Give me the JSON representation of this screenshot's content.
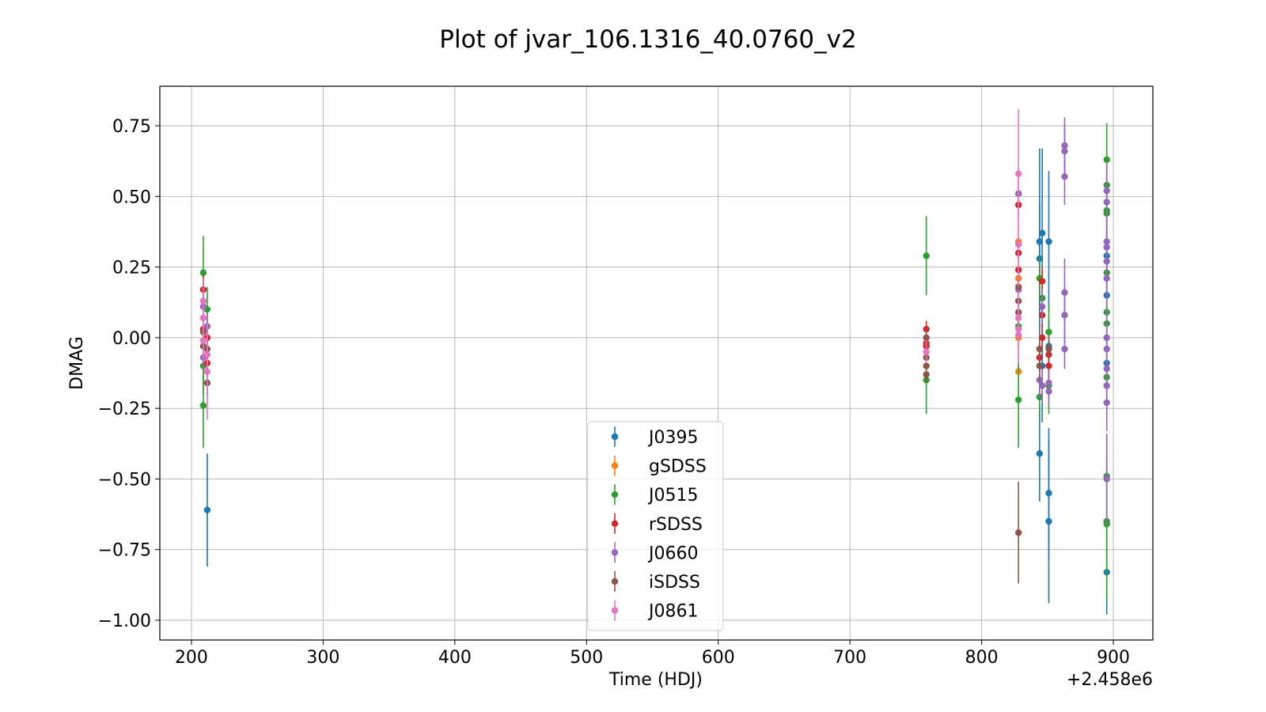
{
  "chart_data": {
    "type": "scatter",
    "title": "Plot of jvar_106.1316_40.0760_v2",
    "xlabel": "Time (HDJ)",
    "ylabel": "DMAG",
    "x_offset_label": "+2.458e6",
    "x_unit_note": "x values are shown offset from 2458000",
    "xlim": [
      176,
      930
    ],
    "ylim": [
      -1.07,
      0.89
    ],
    "xticks": [
      200,
      300,
      400,
      500,
      600,
      700,
      800,
      900
    ],
    "xtick_labels": [
      "200",
      "300",
      "400",
      "500",
      "600",
      "700",
      "800",
      "900"
    ],
    "yticks": [
      0.75,
      0.5,
      0.25,
      0.0,
      -0.25,
      -0.5,
      -0.75,
      -1.0
    ],
    "ytick_labels": [
      "0.75",
      "0.50",
      "0.25",
      "0.00",
      "−0.25",
      "−0.50",
      "−0.75",
      "−1.00"
    ],
    "grid": true,
    "legend_position": "bottom-center",
    "series": [
      {
        "name": "J0395",
        "color": "#1f77b4",
        "points": [
          {
            "x": 212,
            "y": -0.61,
            "err": 0.2
          },
          {
            "x": 844,
            "y": 0.34,
            "err": 0.33
          },
          {
            "x": 844,
            "y": 0.28,
            "err": 0.2
          },
          {
            "x": 844,
            "y": -0.41,
            "err": 0.17
          },
          {
            "x": 846,
            "y": 0.37,
            "err": 0.3
          },
          {
            "x": 846,
            "y": -0.1,
            "err": 0.2
          },
          {
            "x": 851,
            "y": 0.34,
            "err": 0.25
          },
          {
            "x": 851,
            "y": -0.55,
            "err": 0.23
          },
          {
            "x": 851,
            "y": -0.65,
            "err": 0.29
          },
          {
            "x": 851,
            "y": -0.03,
            "err": 0.1
          },
          {
            "x": 895,
            "y": 0.29,
            "err": 0.1
          },
          {
            "x": 895,
            "y": 0.15,
            "err": 0.08
          },
          {
            "x": 895,
            "y": -0.09,
            "err": 0.08
          },
          {
            "x": 895,
            "y": -0.83,
            "err": 0.15
          }
        ]
      },
      {
        "name": "gSDSS",
        "color": "#ff7f0e",
        "points": [
          {
            "x": 828,
            "y": 0.21,
            "err": 0.06
          },
          {
            "x": 828,
            "y": 0.34,
            "err": 0.05
          },
          {
            "x": 828,
            "y": -0.12,
            "err": 0.05
          },
          {
            "x": 828,
            "y": 0.51,
            "err": 0.06
          },
          {
            "x": 828,
            "y": 0.0,
            "err": 0.05
          }
        ]
      },
      {
        "name": "J0515",
        "color": "#2ca02c",
        "points": [
          {
            "x": 209,
            "y": 0.23,
            "err": 0.13
          },
          {
            "x": 209,
            "y": -0.1,
            "err": 0.1
          },
          {
            "x": 209,
            "y": -0.24,
            "err": 0.15
          },
          {
            "x": 212,
            "y": 0.1,
            "err": 0.08
          },
          {
            "x": 758,
            "y": 0.29,
            "err": 0.14
          },
          {
            "x": 758,
            "y": -0.15,
            "err": 0.12
          },
          {
            "x": 828,
            "y": -0.22,
            "err": 0.17
          },
          {
            "x": 828,
            "y": 0.04,
            "err": 0.08
          },
          {
            "x": 844,
            "y": 0.21,
            "err": 0.08
          },
          {
            "x": 844,
            "y": -0.21,
            "err": 0.08
          },
          {
            "x": 846,
            "y": 0.14,
            "err": 0.1
          },
          {
            "x": 851,
            "y": 0.02,
            "err": 0.1
          },
          {
            "x": 851,
            "y": -0.17,
            "err": 0.1
          },
          {
            "x": 895,
            "y": 0.63,
            "err": 0.13
          },
          {
            "x": 895,
            "y": 0.54,
            "err": 0.1
          },
          {
            "x": 895,
            "y": 0.44,
            "err": 0.1
          },
          {
            "x": 895,
            "y": 0.45,
            "err": 0.1
          },
          {
            "x": 895,
            "y": 0.23,
            "err": 0.08
          },
          {
            "x": 895,
            "y": 0.09,
            "err": 0.08
          },
          {
            "x": 895,
            "y": 0.05,
            "err": 0.08
          },
          {
            "x": 895,
            "y": -0.14,
            "err": 0.08
          },
          {
            "x": 895,
            "y": -0.49,
            "err": 0.15
          },
          {
            "x": 895,
            "y": -0.65,
            "err": 0.2
          },
          {
            "x": 895,
            "y": -0.66,
            "err": 0.27
          }
        ]
      },
      {
        "name": "rSDSS",
        "color": "#d62728",
        "points": [
          {
            "x": 209,
            "y": 0.17,
            "err": 0.05
          },
          {
            "x": 209,
            "y": 0.03,
            "err": 0.04
          },
          {
            "x": 212,
            "y": 0.0,
            "err": 0.04
          },
          {
            "x": 212,
            "y": -0.09,
            "err": 0.04
          },
          {
            "x": 758,
            "y": 0.03,
            "err": 0.03
          },
          {
            "x": 758,
            "y": -0.02,
            "err": 0.03
          },
          {
            "x": 758,
            "y": -0.03,
            "err": 0.03
          },
          {
            "x": 828,
            "y": 0.47,
            "err": 0.05
          },
          {
            "x": 828,
            "y": 0.3,
            "err": 0.05
          },
          {
            "x": 828,
            "y": 0.24,
            "err": 0.05
          },
          {
            "x": 844,
            "y": -0.07,
            "err": 0.05
          },
          {
            "x": 846,
            "y": 0.2,
            "err": 0.05
          },
          {
            "x": 846,
            "y": 0.08,
            "err": 0.05
          },
          {
            "x": 846,
            "y": 0.0,
            "err": 0.05
          },
          {
            "x": 851,
            "y": -0.06,
            "err": 0.05
          },
          {
            "x": 851,
            "y": -0.1,
            "err": 0.05
          }
        ]
      },
      {
        "name": "J0660",
        "color": "#9467bd",
        "points": [
          {
            "x": 209,
            "y": 0.11,
            "err": 0.05
          },
          {
            "x": 209,
            "y": -0.07,
            "err": 0.05
          },
          {
            "x": 212,
            "y": 0.04,
            "err": 0.05
          },
          {
            "x": 828,
            "y": 0.51,
            "err": 0.1
          },
          {
            "x": 828,
            "y": 0.17,
            "err": 0.08
          },
          {
            "x": 844,
            "y": -0.15,
            "err": 0.06
          },
          {
            "x": 846,
            "y": 0.11,
            "err": 0.06
          },
          {
            "x": 846,
            "y": -0.17,
            "err": 0.06
          },
          {
            "x": 851,
            "y": -0.16,
            "err": 0.05
          },
          {
            "x": 851,
            "y": -0.19,
            "err": 0.05
          },
          {
            "x": 863,
            "y": 0.68,
            "err": 0.1
          },
          {
            "x": 863,
            "y": 0.66,
            "err": 0.1
          },
          {
            "x": 863,
            "y": 0.57,
            "err": 0.1
          },
          {
            "x": 863,
            "y": 0.16,
            "err": 0.12
          },
          {
            "x": 863,
            "y": 0.08,
            "err": 0.1
          },
          {
            "x": 863,
            "y": -0.04,
            "err": 0.07
          },
          {
            "x": 895,
            "y": 0.52,
            "err": 0.1
          },
          {
            "x": 895,
            "y": 0.48,
            "err": 0.1
          },
          {
            "x": 895,
            "y": 0.34,
            "err": 0.1
          },
          {
            "x": 895,
            "y": 0.32,
            "err": 0.1
          },
          {
            "x": 895,
            "y": 0.27,
            "err": 0.1
          },
          {
            "x": 895,
            "y": 0.21,
            "err": 0.1
          },
          {
            "x": 895,
            "y": 0.0,
            "err": 0.1
          },
          {
            "x": 895,
            "y": -0.04,
            "err": 0.1
          },
          {
            "x": 895,
            "y": -0.11,
            "err": 0.1
          },
          {
            "x": 895,
            "y": -0.17,
            "err": 0.1
          },
          {
            "x": 895,
            "y": -0.23,
            "err": 0.1
          },
          {
            "x": 895,
            "y": -0.5,
            "err": 0.16
          }
        ]
      },
      {
        "name": "iSDSS",
        "color": "#8c564b",
        "points": [
          {
            "x": 209,
            "y": 0.02,
            "err": 0.04
          },
          {
            "x": 209,
            "y": -0.03,
            "err": 0.04
          },
          {
            "x": 212,
            "y": -0.04,
            "err": 0.04
          },
          {
            "x": 212,
            "y": -0.16,
            "err": 0.05
          },
          {
            "x": 758,
            "y": 0.0,
            "err": 0.03
          },
          {
            "x": 758,
            "y": -0.07,
            "err": 0.03
          },
          {
            "x": 758,
            "y": -0.1,
            "err": 0.03
          },
          {
            "x": 758,
            "y": -0.13,
            "err": 0.03
          },
          {
            "x": 828,
            "y": 0.18,
            "err": 0.05
          },
          {
            "x": 828,
            "y": 0.13,
            "err": 0.05
          },
          {
            "x": 828,
            "y": 0.09,
            "err": 0.05
          },
          {
            "x": 828,
            "y": -0.69,
            "err": 0.18
          },
          {
            "x": 844,
            "y": -0.04,
            "err": 0.05
          },
          {
            "x": 844,
            "y": -0.1,
            "err": 0.05
          },
          {
            "x": 851,
            "y": -0.04,
            "err": 0.05
          }
        ]
      },
      {
        "name": "J0861",
        "color": "#e377c2",
        "points": [
          {
            "x": 209,
            "y": 0.13,
            "err": 0.08
          },
          {
            "x": 209,
            "y": 0.07,
            "err": 0.07
          },
          {
            "x": 209,
            "y": -0.01,
            "err": 0.07
          },
          {
            "x": 212,
            "y": -0.06,
            "err": 0.08
          },
          {
            "x": 212,
            "y": -0.12,
            "err": 0.17
          },
          {
            "x": 758,
            "y": -0.05,
            "err": 0.04
          },
          {
            "x": 828,
            "y": 0.58,
            "err": 0.23
          },
          {
            "x": 828,
            "y": 0.33,
            "err": 0.15
          },
          {
            "x": 828,
            "y": 0.07,
            "err": 0.1
          },
          {
            "x": 828,
            "y": 0.03,
            "err": 0.1
          },
          {
            "x": 828,
            "y": 0.01,
            "err": 0.1
          }
        ]
      }
    ]
  }
}
